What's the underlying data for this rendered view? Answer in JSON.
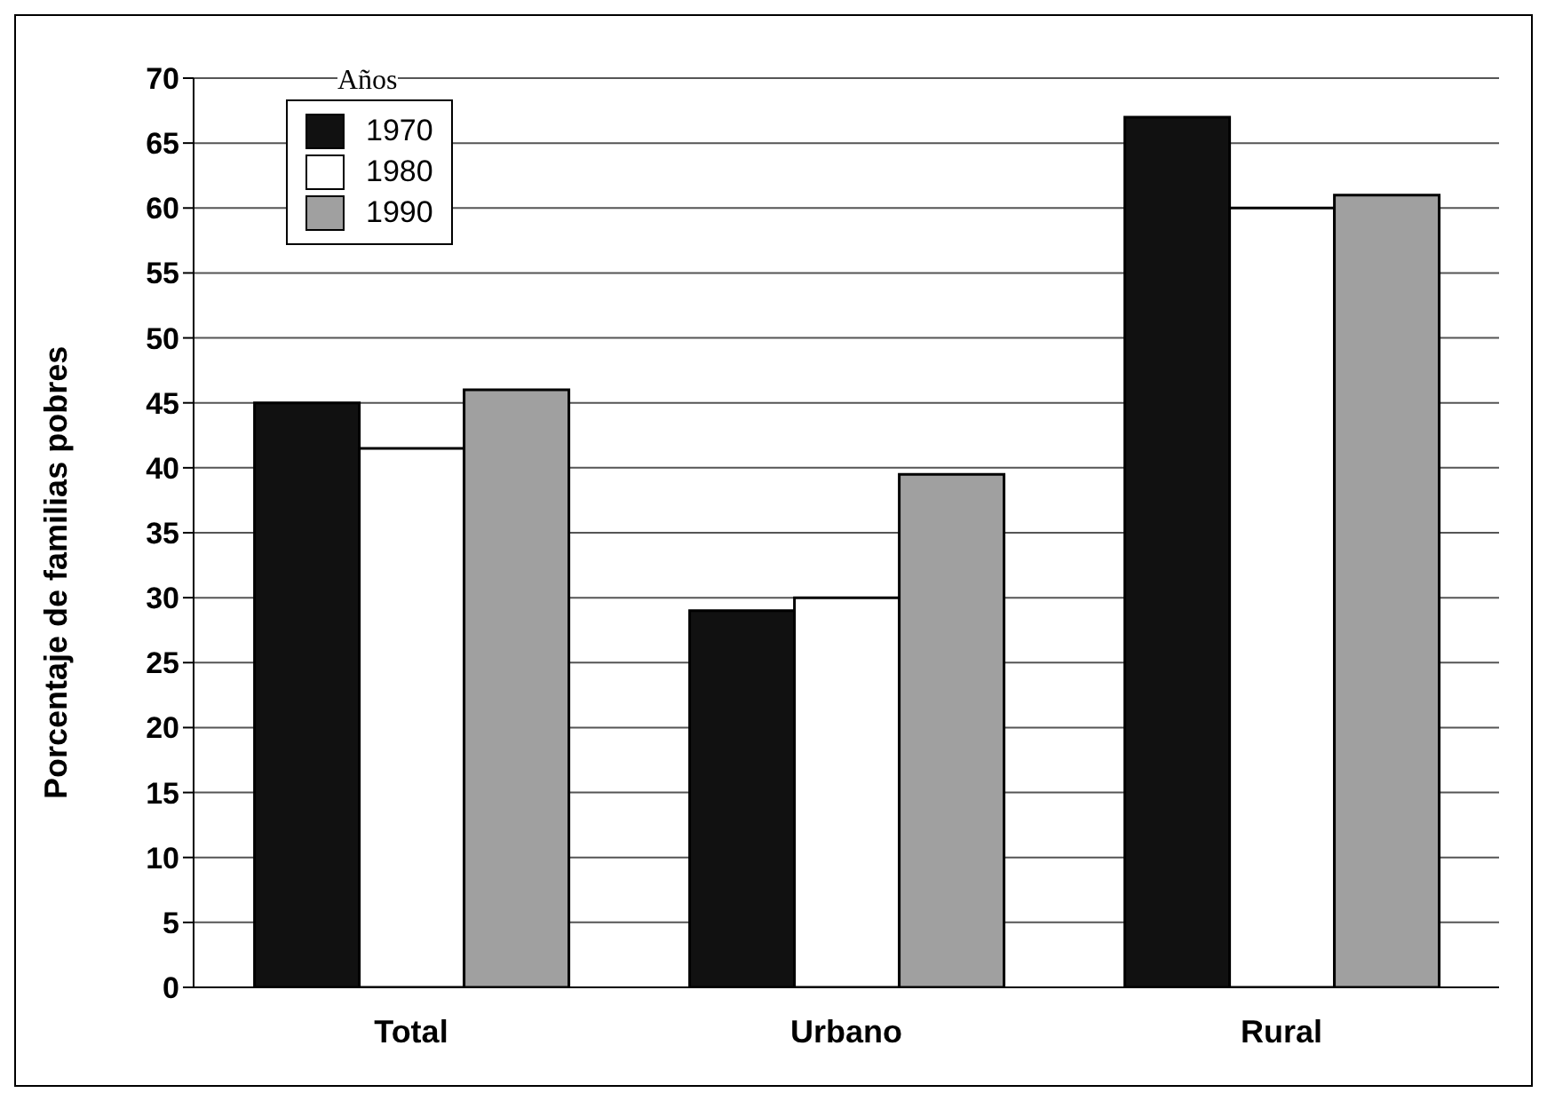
{
  "chart_data": {
    "type": "bar",
    "ylabel": "Porcentaje de familias pobres",
    "legend_title": "Años",
    "categories": [
      "Total",
      "Urbano",
      "Rural"
    ],
    "series": [
      {
        "name": "1970",
        "color": "#111111",
        "values": [
          45,
          29,
          67
        ]
      },
      {
        "name": "1980",
        "color": "#ffffff",
        "values": [
          41.5,
          30,
          60
        ]
      },
      {
        "name": "1990",
        "color": "#a0a0a0",
        "values": [
          46,
          39.5,
          61
        ]
      }
    ],
    "ylim": [
      0,
      70
    ],
    "yticks": [
      0,
      5,
      10,
      15,
      20,
      25,
      30,
      35,
      40,
      45,
      50,
      55,
      60,
      65,
      70
    ],
    "grid": "y",
    "legend": "top left"
  }
}
